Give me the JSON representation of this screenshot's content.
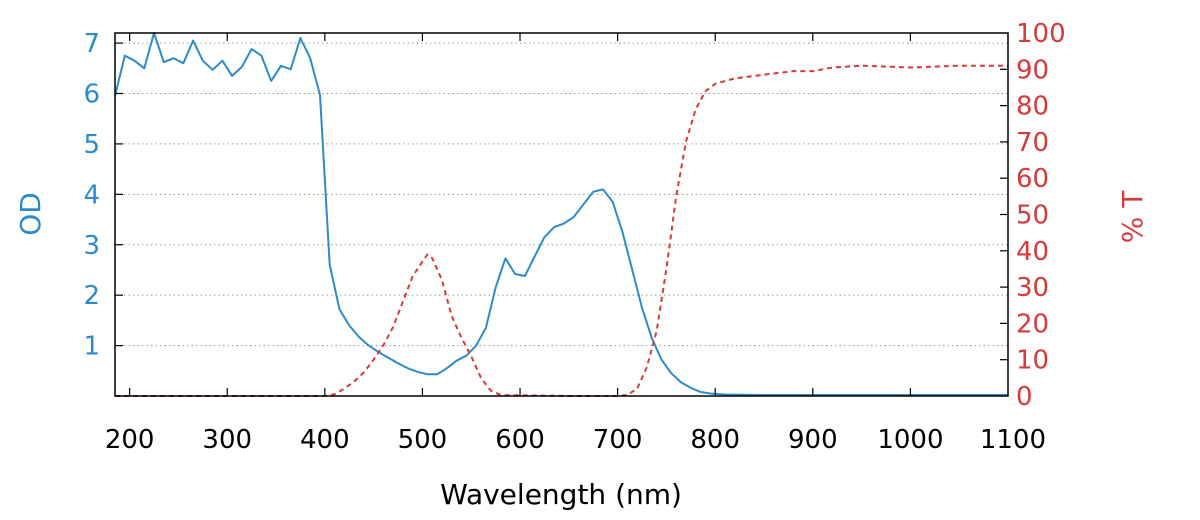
{
  "chart_data": {
    "type": "line",
    "title": "",
    "xlabel": "Wavelength (nm)",
    "ylabel_left": "OD",
    "ylabel_right": "% T",
    "xlim": [
      185,
      1100
    ],
    "x_ticks": [
      200,
      300,
      400,
      500,
      600,
      700,
      800,
      900,
      1000,
      1100
    ],
    "y_left_lim": [
      0,
      7.2
    ],
    "y_left_ticks": [
      1,
      2,
      3,
      4,
      5,
      6,
      7
    ],
    "y_right_lim": [
      0,
      100
    ],
    "y_right_ticks": [
      0,
      10,
      20,
      30,
      40,
      50,
      60,
      70,
      80,
      90,
      100
    ],
    "grid": true,
    "colors": {
      "od": "#2e8bc9",
      "transmission": "#d73a3a",
      "grid": "#999999",
      "axis": "#000000"
    },
    "series": [
      {
        "axis": "left",
        "style": "solid",
        "x": [
          185,
          195,
          205,
          215,
          225,
          235,
          245,
          255,
          265,
          275,
          285,
          295,
          305,
          315,
          325,
          335,
          345,
          355,
          365,
          375,
          385,
          395,
          405,
          415,
          425,
          435,
          445,
          455,
          465,
          475,
          485,
          495,
          505,
          515,
          525,
          535,
          545,
          555,
          565,
          575,
          585,
          595,
          605,
          615,
          625,
          635,
          645,
          655,
          665,
          675,
          685,
          695,
          705,
          715,
          725,
          735,
          745,
          755,
          765,
          775,
          785,
          795,
          810,
          850,
          900,
          950,
          1000,
          1050,
          1100
        ],
        "values": [
          5.95,
          6.75,
          6.65,
          6.5,
          7.2,
          6.62,
          6.7,
          6.6,
          7.05,
          6.65,
          6.47,
          6.65,
          6.35,
          6.53,
          6.88,
          6.75,
          6.25,
          6.55,
          6.48,
          7.1,
          6.7,
          5.97,
          2.6,
          1.72,
          1.4,
          1.17,
          1.0,
          0.87,
          0.76,
          0.65,
          0.55,
          0.48,
          0.43,
          0.43,
          0.55,
          0.7,
          0.8,
          1.0,
          1.35,
          2.15,
          2.73,
          2.42,
          2.38,
          2.77,
          3.15,
          3.35,
          3.42,
          3.55,
          3.8,
          4.05,
          4.1,
          3.85,
          3.25,
          2.5,
          1.75,
          1.15,
          0.72,
          0.45,
          0.27,
          0.16,
          0.08,
          0.05,
          0.03,
          0.02,
          0.02,
          0.02,
          0.02,
          0.02,
          0.02
        ]
      },
      {
        "axis": "right",
        "style": "dashed",
        "x": [
          185,
          300,
          390,
          400,
          410,
          420,
          430,
          440,
          450,
          460,
          470,
          480,
          490,
          500,
          505,
          510,
          520,
          530,
          540,
          550,
          560,
          570,
          580,
          590,
          600,
          650,
          700,
          710,
          720,
          730,
          740,
          750,
          760,
          770,
          780,
          790,
          800,
          820,
          850,
          880,
          900,
          920,
          950,
          1000,
          1050,
          1100
        ],
        "values": [
          0,
          0,
          0,
          0,
          0.5,
          2,
          4,
          6.5,
          10,
          14,
          19,
          26,
          33,
          37,
          39,
          38,
          32,
          22,
          16,
          11,
          5,
          1.5,
          0.3,
          0.2,
          0.2,
          0,
          0,
          0.3,
          2,
          8,
          18,
          35,
          55,
          70,
          79,
          84,
          86,
          87.5,
          88.5,
          89.5,
          89.5,
          90.5,
          91,
          90.5,
          91,
          91
        ]
      }
    ]
  }
}
